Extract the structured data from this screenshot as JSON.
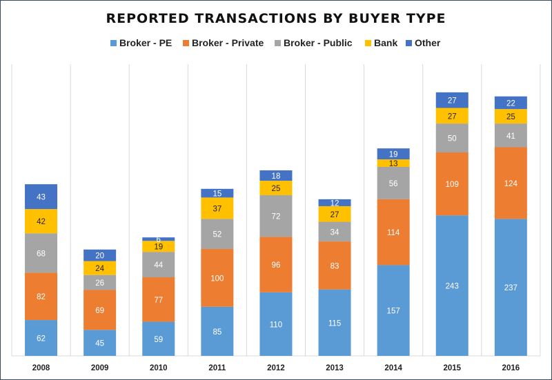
{
  "chart_data": {
    "type": "bar",
    "stacked": true,
    "title": "REPORTED TRANSACTIONS BY BUYER TYPE",
    "xlabel": "",
    "ylabel": "",
    "legend_position": "top",
    "grid": "vertical category separators",
    "categories": [
      "2008",
      "2009",
      "2010",
      "2011",
      "2012",
      "2013",
      "2014",
      "2015",
      "2016"
    ],
    "series": [
      {
        "name": "Broker - PE",
        "color": "#5b9bd5",
        "values": [
          62,
          45,
          59,
          85,
          110,
          115,
          157,
          243,
          237
        ]
      },
      {
        "name": "Broker - Private",
        "color": "#ed7d31",
        "values": [
          82,
          69,
          77,
          100,
          96,
          83,
          114,
          109,
          124
        ]
      },
      {
        "name": "Broker - Public",
        "color": "#a5a5a5",
        "values": [
          68,
          26,
          44,
          52,
          72,
          34,
          56,
          50,
          41
        ]
      },
      {
        "name": "Bank",
        "color": "#ffc000",
        "values": [
          42,
          24,
          19,
          37,
          25,
          27,
          13,
          27,
          25
        ]
      },
      {
        "name": "Other",
        "color": "#4472c4",
        "values": [
          43,
          20,
          6,
          15,
          18,
          12,
          19,
          27,
          22
        ]
      }
    ]
  }
}
